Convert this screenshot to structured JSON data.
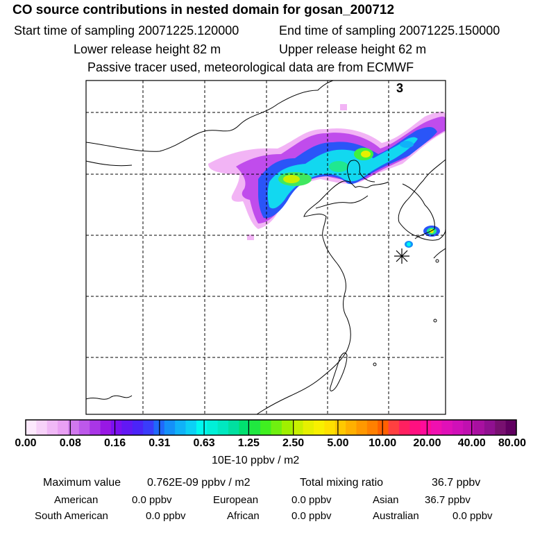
{
  "header": {
    "title": "CO  source contributions in nested domain for gosan_200712",
    "start_time": "Start time of sampling 20071225.120000",
    "end_time": "End time of sampling 20071225.150000",
    "lower_release": "Lower release height   82 m",
    "upper_release": "Upper release height   62 m",
    "tracer_note": "Passive tracer used, meteorological data are from ECMWF"
  },
  "map": {
    "panel_number": "3",
    "receptor_marker": "asterisk-icon"
  },
  "colorbar": {
    "ticks": [
      "0.00",
      "0.08",
      "0.16",
      "0.31",
      "0.63",
      "1.25",
      "2.50",
      "5.00",
      "10.00",
      "20.00",
      "40.00",
      "80.00"
    ],
    "units": "10E-10 ppbv / m2",
    "colors": [
      "#fde9fd",
      "#f7d2f9",
      "#f0b8f6",
      "#e9a0f3",
      "#d178ee",
      "#bd58eb",
      "#a936e6",
      "#9818e4",
      "#7b10f0",
      "#6218f4",
      "#4b24f8",
      "#3a3cfb",
      "#1f68fb",
      "#1490f8",
      "#10b2f8",
      "#0cd0f5",
      "#00f8f0",
      "#00f0d8",
      "#00e8c0",
      "#00e0a0",
      "#00e070",
      "#20e840",
      "#40f020",
      "#70f010",
      "#a0f000",
      "#c8f000",
      "#e6f000",
      "#f8f000",
      "#ffe000",
      "#ffc800",
      "#ffb000",
      "#ff9800",
      "#ff8000",
      "#ff6000",
      "#ff4040",
      "#ff2060",
      "#ff1080",
      "#ff0c9a",
      "#f010b0",
      "#e010b8",
      "#d010b8",
      "#c010b0",
      "#a810a0",
      "#901090",
      "#781070",
      "#600060"
    ]
  },
  "summary": {
    "max_label": "Maximum value",
    "max_value": "0.762E-09 ppbv / m2",
    "total_label": "Total mixing ratio",
    "total_value": "36.7 ppbv",
    "regions": [
      {
        "name": "American",
        "value": "0.0 ppbv"
      },
      {
        "name": "European",
        "value": "0.0 ppbv"
      },
      {
        "name": "Asian",
        "value": "36.7 ppbv"
      },
      {
        "name": "South American",
        "value": "0.0 ppbv"
      },
      {
        "name": "African",
        "value": "0.0 ppbv"
      },
      {
        "name": "Australian",
        "value": "0.0 ppbv"
      }
    ]
  }
}
